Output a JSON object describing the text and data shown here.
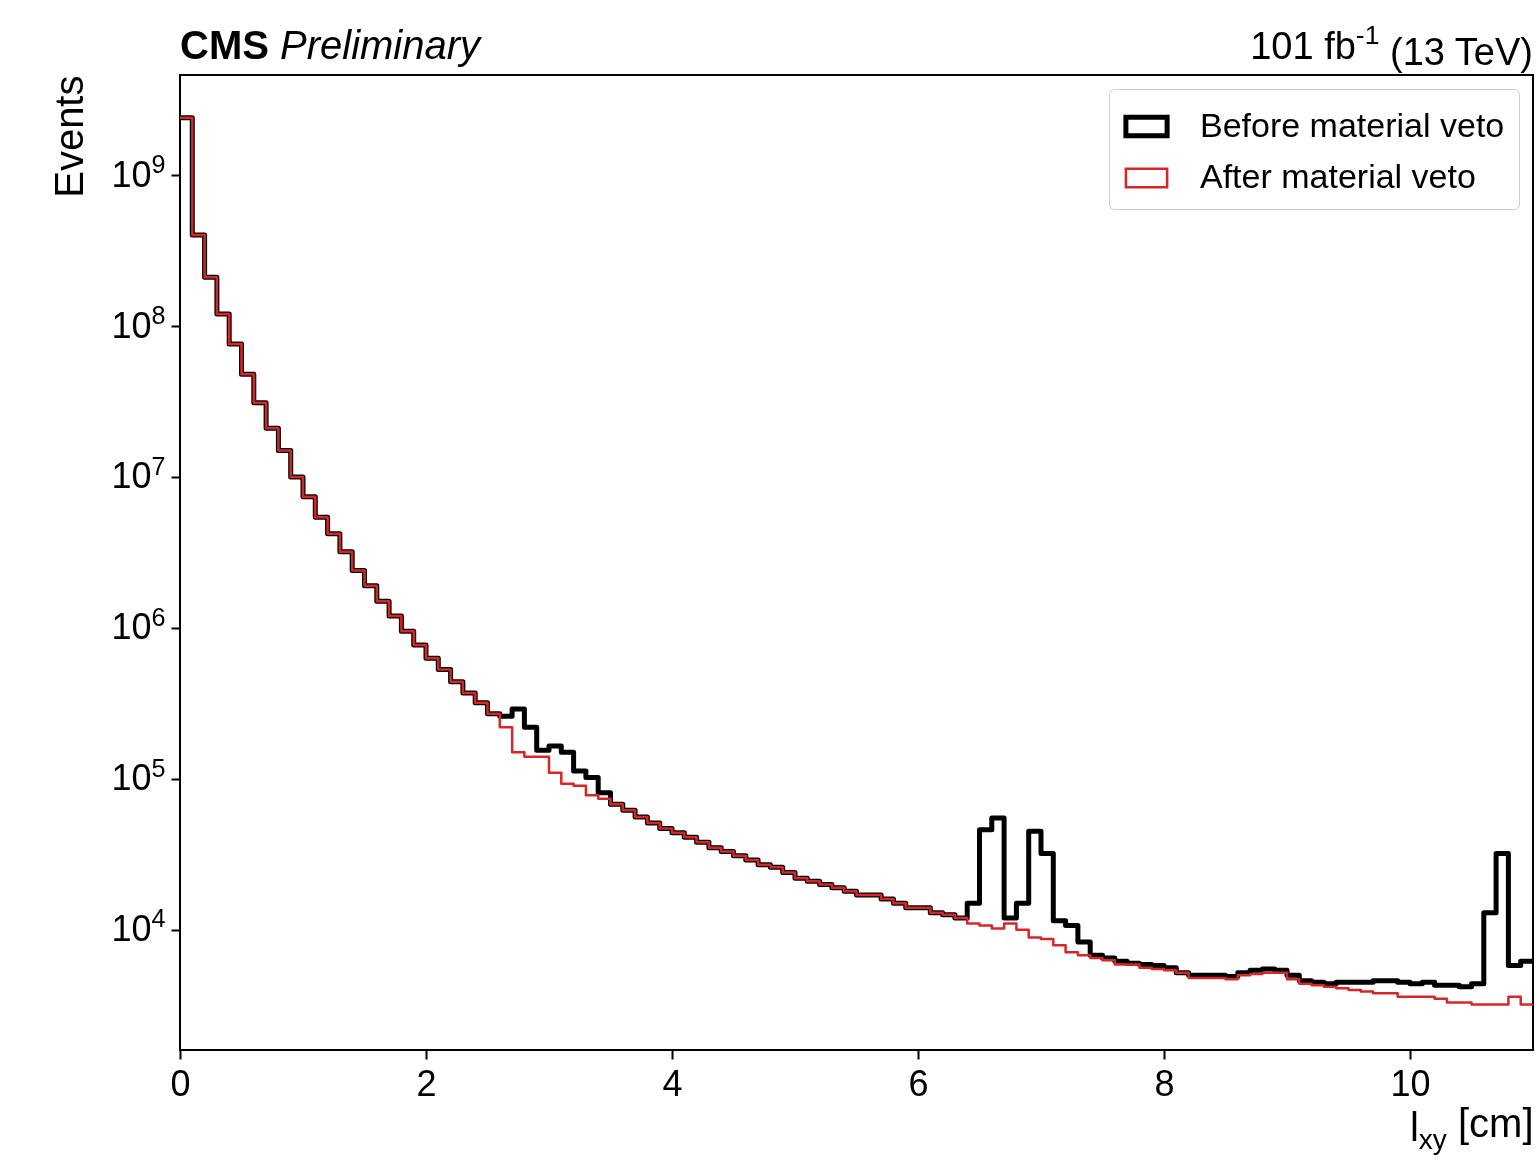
{
  "chart_data": {
    "type": "histogram",
    "title": "CMS Preliminary",
    "xlabel": "l$_{xy}$ [cm]",
    "ylabel": "Events",
    "annotations": [
      "101 fb$^{-1}$ (13 TeV)"
    ],
    "bins": [
      0,
      0.1,
      0.2,
      0.3,
      0.4,
      0.5,
      0.6,
      0.7,
      0.8,
      0.9,
      1,
      1.1,
      1.2,
      1.3,
      1.4,
      1.5,
      1.6,
      1.7,
      1.8,
      1.9,
      2,
      2.1,
      2.2,
      2.3,
      2.4,
      2.5,
      2.6,
      2.7,
      2.8,
      2.9,
      3,
      3.1,
      3.2,
      3.3,
      3.4,
      3.5,
      3.6,
      3.7,
      3.8,
      3.9,
      4,
      4.1,
      4.2,
      4.3,
      4.4,
      4.5,
      4.6,
      4.7,
      4.8,
      4.9,
      5,
      5.1,
      5.2,
      5.3,
      5.4,
      5.5,
      5.6,
      5.7,
      5.8,
      5.9,
      6,
      6.1,
      6.2,
      6.3,
      6.4,
      6.5,
      6.6,
      6.7,
      6.8,
      6.9,
      7,
      7.1,
      7.2,
      7.3,
      7.4,
      7.5,
      7.6,
      7.7,
      7.8,
      7.9,
      8,
      8.1,
      8.2,
      8.3,
      8.4,
      8.5,
      8.6,
      8.7,
      8.8,
      8.9,
      9,
      9.1,
      9.2,
      9.3,
      9.4,
      9.5,
      9.6,
      9.7,
      9.8,
      9.9,
      10,
      10.1,
      10.2,
      10.3,
      10.4,
      10.5,
      10.6,
      10.7,
      10.8,
      10.9,
      11
    ],
    "series": [
      {
        "name": "Before material veto",
        "color": "#000000",
        "values": [
          2400000000,
          400000000,
          210000000,
          120000000,
          76000000,
          48000000,
          31000000,
          21000000,
          15000000,
          10000000,
          7400000,
          5400000,
          4200000,
          3200000,
          2400000,
          1900000,
          1500000,
          1200000,
          950000,
          770000,
          630000,
          530000,
          440000,
          370000,
          320000,
          270000,
          260000,
          290000,
          220000,
          155000,
          165000,
          150000,
          113000,
          102000,
          81000,
          68000,
          62000,
          56000,
          51000,
          47000,
          44000,
          41000,
          38000,
          35000,
          33000,
          31000,
          29000,
          27000,
          26000,
          24000,
          22000,
          21000,
          20000,
          19000,
          18000,
          17000,
          17000,
          16000,
          15000,
          14000,
          14000,
          13000,
          12600,
          12000,
          15000,
          46000,
          55000,
          12000,
          15000,
          45000,
          32000,
          11500,
          10700,
          8300,
          6800,
          6500,
          6200,
          6000,
          5900,
          5800,
          5600,
          5200,
          5000,
          5000,
          5000,
          4900,
          5200,
          5400,
          5500,
          5400,
          5000,
          4600,
          4500,
          4400,
          4500,
          4500,
          4500,
          4600,
          4600,
          4500,
          4400,
          4500,
          4300,
          4300,
          4200,
          4400,
          13000,
          32000,
          5800,
          6200
        ]
      },
      {
        "name": "After material veto",
        "color": "#d62728",
        "values": [
          2400000000,
          400000000,
          210000000,
          120000000,
          76000000,
          48000000,
          31000000,
          21000000,
          15000000,
          10000000,
          7400000,
          5400000,
          4200000,
          3200000,
          2400000,
          1900000,
          1500000,
          1200000,
          950000,
          770000,
          630000,
          530000,
          440000,
          370000,
          320000,
          270000,
          220000,
          150000,
          140000,
          140000,
          110000,
          93000,
          90000,
          78000,
          74000,
          68000,
          62000,
          56000,
          51000,
          47000,
          44000,
          41000,
          38000,
          35000,
          33000,
          31000,
          29000,
          27000,
          26000,
          24000,
          22000,
          21000,
          20000,
          19000,
          18000,
          17000,
          17000,
          16000,
          15000,
          14000,
          14000,
          13000,
          12600,
          12000,
          11000,
          10700,
          10200,
          11000,
          10000,
          8900,
          8700,
          7900,
          7100,
          6800,
          6500,
          6300,
          5900,
          5900,
          5600,
          5500,
          5400,
          5200,
          4800,
          4800,
          4800,
          4700,
          5000,
          5100,
          5200,
          5200,
          4700,
          4400,
          4300,
          4200,
          4100,
          4000,
          3900,
          3800,
          3800,
          3600,
          3600,
          3600,
          3500,
          3300,
          3300,
          3200,
          3200,
          3200,
          3600,
          3200
        ]
      }
    ],
    "xlim": [
      0,
      11
    ],
    "xticks": [
      0,
      2,
      4,
      6,
      8,
      10
    ],
    "ylim": [
      1600,
      4600000000
    ],
    "yticks": [
      {
        "value": 10000,
        "label": "10$^{4}$"
      },
      {
        "value": 100000,
        "label": "10$^{5}$"
      },
      {
        "value": 1000000,
        "label": "10$^{6}$"
      },
      {
        "value": 10000000,
        "label": "10$^{7}$"
      },
      {
        "value": 100000000,
        "label": "10$^{8}$"
      },
      {
        "value": 1000000000,
        "label": "10$^{9}$"
      }
    ],
    "log": true,
    "grid": false,
    "legend": "top right"
  }
}
